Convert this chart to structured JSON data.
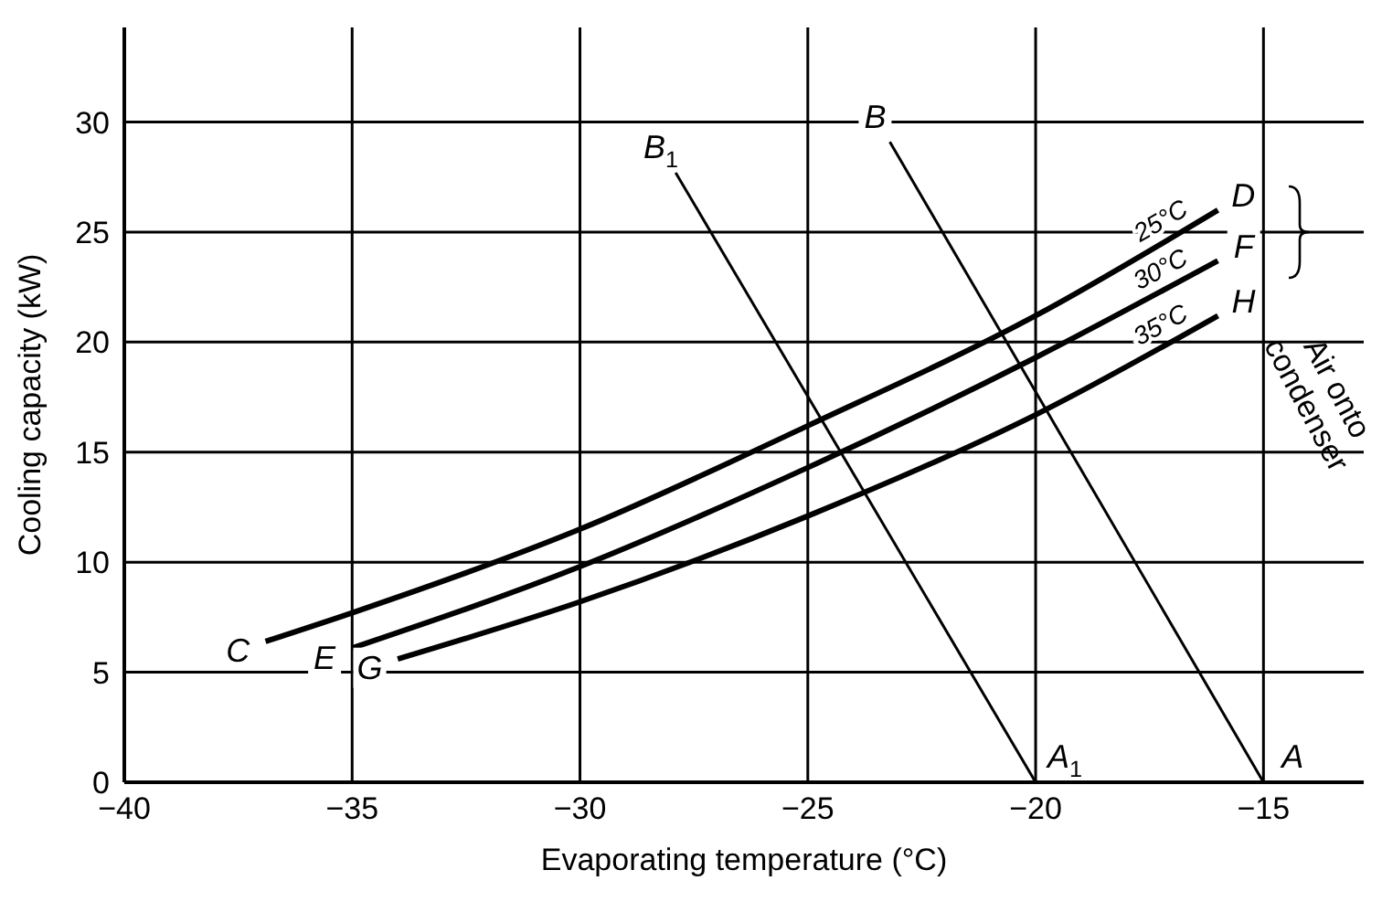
{
  "chart_data": {
    "type": "line",
    "xlabel": "Evaporating temperature (°C)",
    "ylabel": "Cooling capacity (kW)",
    "xlim": [
      -40,
      -12.8
    ],
    "ylim": [
      0,
      34.3
    ],
    "xticks": [
      -40,
      -35,
      -30,
      -25,
      -20,
      -15
    ],
    "yticks": [
      0,
      5,
      10,
      15,
      20,
      25,
      30
    ],
    "grid": true,
    "legend": false,
    "marker": "none",
    "line_style": "solid",
    "series": [
      {
        "name": "25°C",
        "color": "#000000",
        "x": [
          -36.9,
          -35,
          -30,
          -25,
          -20,
          -16
        ],
        "values": [
          6.4,
          7.7,
          11.5,
          16.2,
          21.2,
          26
        ]
      },
      {
        "name": "30°C",
        "color": "#000000",
        "x": [
          -35,
          -30,
          -25,
          -20,
          -16
        ],
        "values": [
          6.1,
          9.8,
          14.3,
          19.3,
          23.7
        ]
      },
      {
        "name": "35°C",
        "color": "#000000",
        "x": [
          -34,
          -30,
          -25,
          -20,
          -16
        ],
        "values": [
          5.6,
          8.2,
          12.1,
          16.7,
          21.2
        ]
      },
      {
        "color": "#000000",
        "x": [
          -15,
          -23.2
        ],
        "values": [
          0,
          29.1
        ]
      },
      {
        "color": "#000000",
        "x": [
          -20,
          -27.9
        ],
        "values": [
          0,
          27.7
        ]
      }
    ],
    "annotations": [
      {
        "text": "C",
        "x": -36.9,
        "y": 6.4
      },
      {
        "text": "D",
        "x": -16,
        "y": 26
      },
      {
        "text": "E",
        "x": -35,
        "y": 6.1
      },
      {
        "text": "F",
        "x": -16,
        "y": 23.7
      },
      {
        "text": "G",
        "x": -34,
        "y": 5.6
      },
      {
        "text": "H",
        "x": -16,
        "y": 21.2
      },
      {
        "text": "B",
        "x": -23.2,
        "y": 29.1
      },
      {
        "text": "B$_{1}$",
        "x": -27.9,
        "y": 27.7
      },
      {
        "text": "A",
        "x": -15,
        "y": 0
      },
      {
        "text": "A$_{1}$",
        "x": -20,
        "y": 0
      },
      "Air onto condenser"
    ]
  }
}
